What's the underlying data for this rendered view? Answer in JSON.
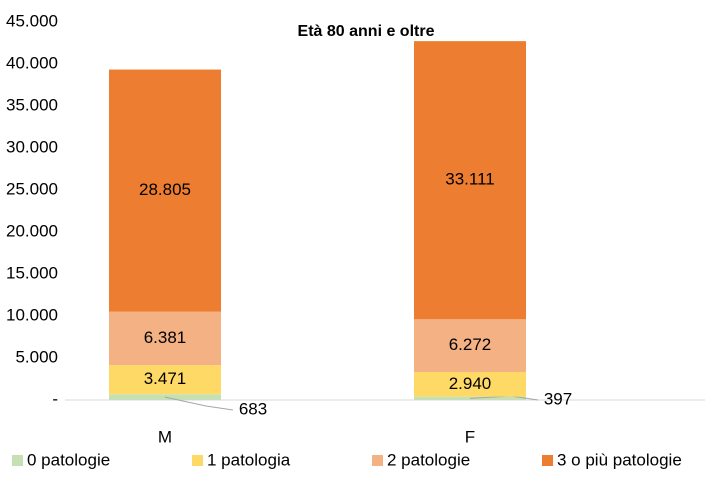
{
  "chart_data": {
    "type": "stacked_bar",
    "title": "Età 80 anni e oltre",
    "categories": [
      "M",
      "F"
    ],
    "series": [
      {
        "name": "0 patologie",
        "color": "#c5e0b4",
        "values": [
          683,
          397
        ],
        "value_labels": [
          "683",
          "397"
        ]
      },
      {
        "name": "1 patologia",
        "color": "#ffd966",
        "values": [
          3471,
          2940
        ],
        "value_labels": [
          "3.471",
          "2.940"
        ]
      },
      {
        "name": "2 patologie",
        "color": "#f4b183",
        "values": [
          6381,
          6272
        ],
        "value_labels": [
          "6.381",
          "6.272"
        ]
      },
      {
        "name": "3 o più patologie",
        "color": "#ed7d31",
        "values": [
          28805,
          33111
        ],
        "value_labels": [
          "28.805",
          "33.111"
        ]
      }
    ],
    "ylim": [
      0,
      45000
    ],
    "yticks": [
      {
        "value": 0,
        "label": "-"
      },
      {
        "value": 5000,
        "label": "5.000"
      },
      {
        "value": 10000,
        "label": "10.000"
      },
      {
        "value": 15000,
        "label": "15.000"
      },
      {
        "value": 20000,
        "label": "20.000"
      },
      {
        "value": 25000,
        "label": "25.000"
      },
      {
        "value": 30000,
        "label": "30.000"
      },
      {
        "value": 35000,
        "label": "35.000"
      },
      {
        "value": 40000,
        "label": "40.000"
      },
      {
        "value": 45000,
        "label": "45.000"
      }
    ],
    "grid": false
  }
}
